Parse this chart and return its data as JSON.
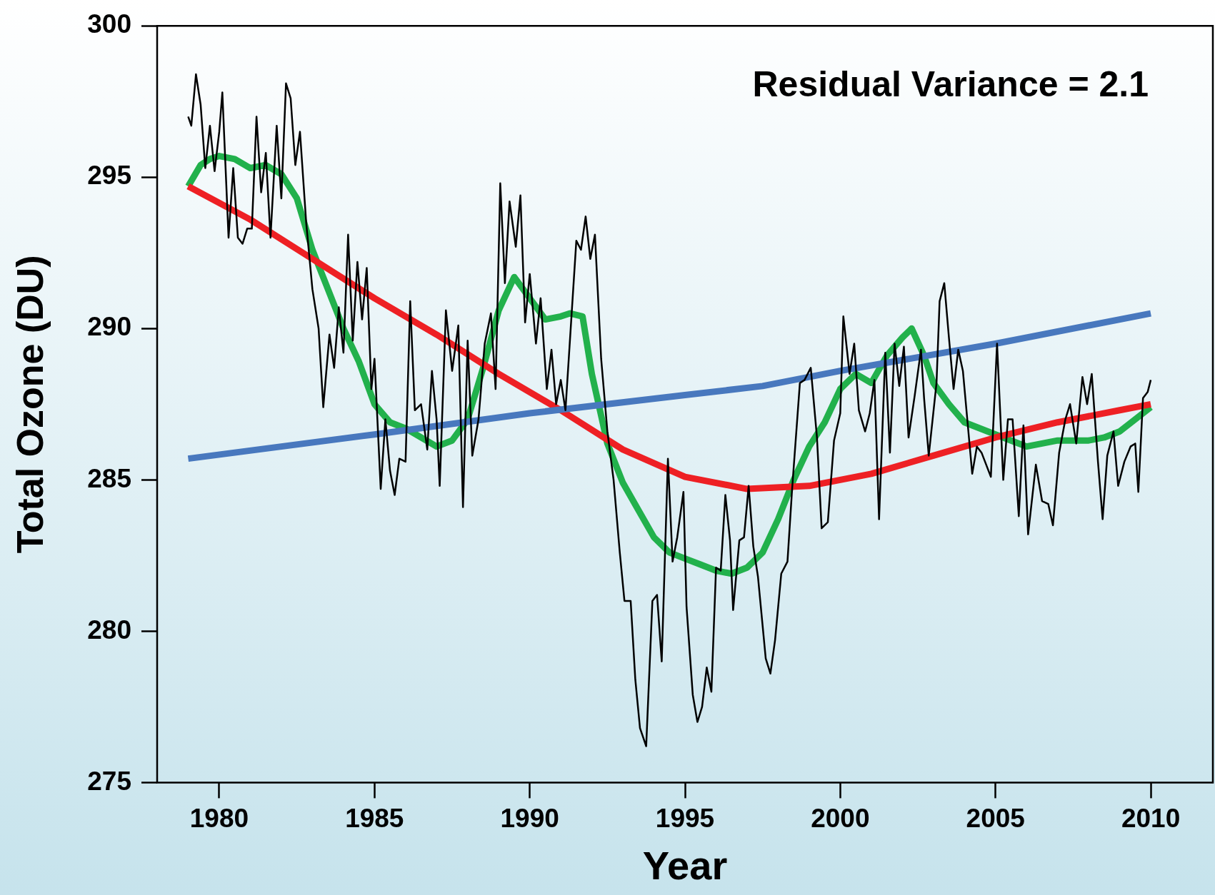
{
  "chart_data": {
    "type": "line",
    "xlabel": "Year",
    "ylabel": "Total Ozone (DU)",
    "annotations": [
      "Residual Variance = 2.1"
    ],
    "xlim": [
      1978,
      2012
    ],
    "xticks": [
      1980,
      1985,
      1990,
      1995,
      2000,
      2005,
      2010
    ],
    "ylim": [
      275,
      300
    ],
    "yticks": [
      275,
      280,
      285,
      290,
      295,
      300
    ],
    "grid": false,
    "legend": false,
    "marker": "none",
    "line_style": "solid",
    "series": [
      {
        "color": "#000000",
        "x": [
          1979.0,
          1979.1,
          1979.25,
          1979.4,
          1979.55,
          1979.7,
          1979.85,
          1980.0,
          1980.1,
          1980.3,
          1980.45,
          1980.6,
          1980.75,
          1980.9,
          1981.05,
          1981.2,
          1981.35,
          1981.5,
          1981.65,
          1981.85,
          1982.0,
          1982.15,
          1982.3,
          1982.45,
          1982.6,
          1982.8,
          1983.0,
          1983.2,
          1983.35,
          1983.55,
          1983.7,
          1983.85,
          1984.0,
          1984.15,
          1984.3,
          1984.45,
          1984.6,
          1984.75,
          1984.9,
          1985.0,
          1985.2,
          1985.35,
          1985.5,
          1985.65,
          1985.8,
          1986.0,
          1986.15,
          1986.3,
          1986.5,
          1986.7,
          1986.85,
          1987.0,
          1987.1,
          1987.3,
          1987.5,
          1987.7,
          1987.85,
          1988.0,
          1988.15,
          1988.35,
          1988.55,
          1988.75,
          1988.9,
          1989.05,
          1989.2,
          1989.35,
          1989.55,
          1989.7,
          1989.85,
          1990.0,
          1990.2,
          1990.35,
          1990.55,
          1990.7,
          1990.85,
          1991.0,
          1991.15,
          1991.35,
          1991.5,
          1991.65,
          1991.8,
          1991.95,
          1992.1,
          1992.3,
          1992.5,
          1992.7,
          1992.9,
          1993.05,
          1993.25,
          1993.4,
          1993.55,
          1993.75,
          1993.95,
          1994.1,
          1994.25,
          1994.45,
          1994.6,
          1994.75,
          1994.95,
          1995.05,
          1995.25,
          1995.4,
          1995.55,
          1995.7,
          1995.85,
          1996.0,
          1996.15,
          1996.3,
          1996.45,
          1996.55,
          1996.75,
          1996.9,
          1997.05,
          1997.2,
          1997.35,
          1997.6,
          1997.75,
          1997.9,
          1998.1,
          1998.3,
          1998.45,
          1998.7,
          1998.85,
          1999.05,
          1999.25,
          1999.4,
          1999.6,
          1999.8,
          2000.0,
          2000.1,
          2000.3,
          2000.45,
          2000.6,
          2000.8,
          2000.95,
          2001.1,
          2001.25,
          2001.45,
          2001.6,
          2001.75,
          2001.9,
          2002.05,
          2002.2,
          2002.4,
          2002.6,
          2002.7,
          2002.85,
          2003.1,
          2003.2,
          2003.35,
          2003.5,
          2003.65,
          2003.8,
          2003.95,
          2004.1,
          2004.25,
          2004.4,
          2004.55,
          2004.7,
          2004.85,
          2005.05,
          2005.25,
          2005.4,
          2005.55,
          2005.75,
          2005.9,
          2006.05,
          2006.3,
          2006.5,
          2006.7,
          2006.85,
          2007.05,
          2007.25,
          2007.4,
          2007.6,
          2007.8,
          2007.95,
          2008.1,
          2008.3,
          2008.45,
          2008.6,
          2008.8,
          2008.95,
          2009.15,
          2009.35,
          2009.5,
          2009.6,
          2009.75,
          2009.9,
          2010.0
        ],
        "values": [
          297.0,
          296.7,
          298.4,
          297.4,
          295.3,
          296.7,
          295.2,
          296.5,
          297.8,
          293.0,
          295.3,
          293.0,
          292.8,
          293.3,
          293.3,
          297.0,
          294.5,
          295.8,
          293.0,
          296.7,
          294.3,
          298.1,
          297.6,
          295.4,
          296.5,
          293.5,
          291.3,
          290.0,
          287.4,
          289.8,
          288.7,
          290.7,
          289.2,
          293.1,
          289.6,
          292.2,
          290.3,
          292.0,
          288.0,
          289.0,
          284.7,
          287.0,
          285.3,
          284.5,
          285.7,
          285.6,
          290.9,
          287.3,
          287.5,
          286.0,
          288.6,
          287.0,
          284.8,
          290.6,
          288.6,
          290.1,
          284.1,
          289.6,
          285.8,
          287.0,
          289.5,
          290.5,
          288.0,
          294.8,
          291.5,
          294.2,
          292.7,
          294.4,
          290.2,
          291.8,
          289.5,
          291.0,
          288.0,
          289.3,
          287.5,
          288.3,
          287.3,
          290.5,
          292.9,
          292.6,
          293.7,
          292.3,
          293.1,
          289.0,
          286.6,
          285.0,
          282.6,
          281.0,
          281.0,
          278.4,
          276.8,
          276.2,
          281.0,
          281.2,
          279.0,
          285.7,
          282.3,
          283.1,
          284.6,
          280.8,
          277.9,
          277.0,
          277.5,
          278.8,
          278.0,
          282.1,
          282.0,
          284.5,
          283.0,
          280.7,
          283.0,
          283.1,
          284.8,
          282.8,
          281.8,
          279.1,
          278.6,
          279.7,
          281.9,
          282.3,
          284.7,
          288.2,
          288.3,
          288.7,
          286.4,
          283.4,
          283.6,
          286.3,
          287.2,
          290.4,
          288.5,
          289.5,
          287.3,
          286.6,
          287.2,
          288.3,
          283.7,
          289.2,
          285.9,
          289.5,
          288.1,
          289.4,
          286.4,
          287.8,
          289.3,
          287.7,
          285.8,
          288.2,
          290.9,
          291.5,
          289.7,
          288.0,
          289.3,
          288.6,
          286.9,
          285.2,
          286.1,
          285.9,
          285.5,
          285.1,
          289.5,
          285.0,
          287.0,
          287.0,
          283.8,
          286.8,
          283.2,
          285.5,
          284.3,
          284.2,
          283.5,
          285.9,
          287.0,
          287.5,
          286.2,
          288.4,
          287.5,
          288.5,
          285.6,
          283.7,
          285.8,
          286.6,
          284.8,
          285.6,
          286.1,
          286.2,
          284.6,
          287.7,
          287.9,
          288.3
        ]
      },
      {
        "color": "#4878be",
        "x": [
          1979,
          1985,
          1990,
          1995,
          1997.5,
          2000,
          2005,
          2010
        ],
        "values": [
          285.7,
          286.5,
          287.2,
          287.8,
          288.1,
          288.6,
          289.5,
          290.5
        ]
      },
      {
        "color": "#ee2024",
        "x": [
          1979,
          1981,
          1983,
          1985,
          1987,
          1989,
          1991,
          1993,
          1995,
          1997,
          1999,
          2001,
          2003,
          2005,
          2007,
          2009,
          2010
        ],
        "values": [
          294.7,
          293.6,
          292.3,
          291.0,
          289.8,
          288.5,
          287.3,
          286.0,
          285.1,
          284.7,
          284.8,
          285.2,
          285.8,
          286.4,
          286.9,
          287.3,
          287.5
        ]
      },
      {
        "color": "#22b14c",
        "x": [
          1979,
          1979.4,
          1979.7,
          1980,
          1980.5,
          1981,
          1981.5,
          1982,
          1982.5,
          1983,
          1983.5,
          1984,
          1984.5,
          1985,
          1985.5,
          1986,
          1986.5,
          1987,
          1987.5,
          1988,
          1988.5,
          1989,
          1989.5,
          1990,
          1990.5,
          1991,
          1991.3,
          1991.7,
          1992,
          1992.5,
          1993,
          1993.5,
          1994,
          1994.5,
          1995,
          1995.5,
          1996,
          1996.5,
          1997,
          1997.5,
          1998,
          1998.5,
          1999,
          1999.5,
          2000,
          2000.5,
          2001,
          2001.5,
          2002,
          2002.3,
          2002.7,
          2003,
          2003.5,
          2004,
          2004.5,
          2005,
          2005.5,
          2006,
          2006.5,
          2007,
          2008,
          2008.5,
          2009,
          2009.5,
          2010
        ],
        "values": [
          294.7,
          295.4,
          295.6,
          295.7,
          295.6,
          295.3,
          295.4,
          295.1,
          294.3,
          292.6,
          291.3,
          290.0,
          288.9,
          287.5,
          286.9,
          286.7,
          286.4,
          286.1,
          286.3,
          287.0,
          288.7,
          290.6,
          291.7,
          291.0,
          290.3,
          290.4,
          290.5,
          290.4,
          288.5,
          286.2,
          284.9,
          284.0,
          283.1,
          282.6,
          282.4,
          282.2,
          282.0,
          281.9,
          282.1,
          282.6,
          283.7,
          285.0,
          286.1,
          286.9,
          288.0,
          288.5,
          288.2,
          289.1,
          289.7,
          290.0,
          289.1,
          288.2,
          287.5,
          286.9,
          286.7,
          286.5,
          286.3,
          286.1,
          286.2,
          286.3,
          286.3,
          286.4,
          286.6,
          287.0,
          287.4
        ]
      }
    ]
  }
}
